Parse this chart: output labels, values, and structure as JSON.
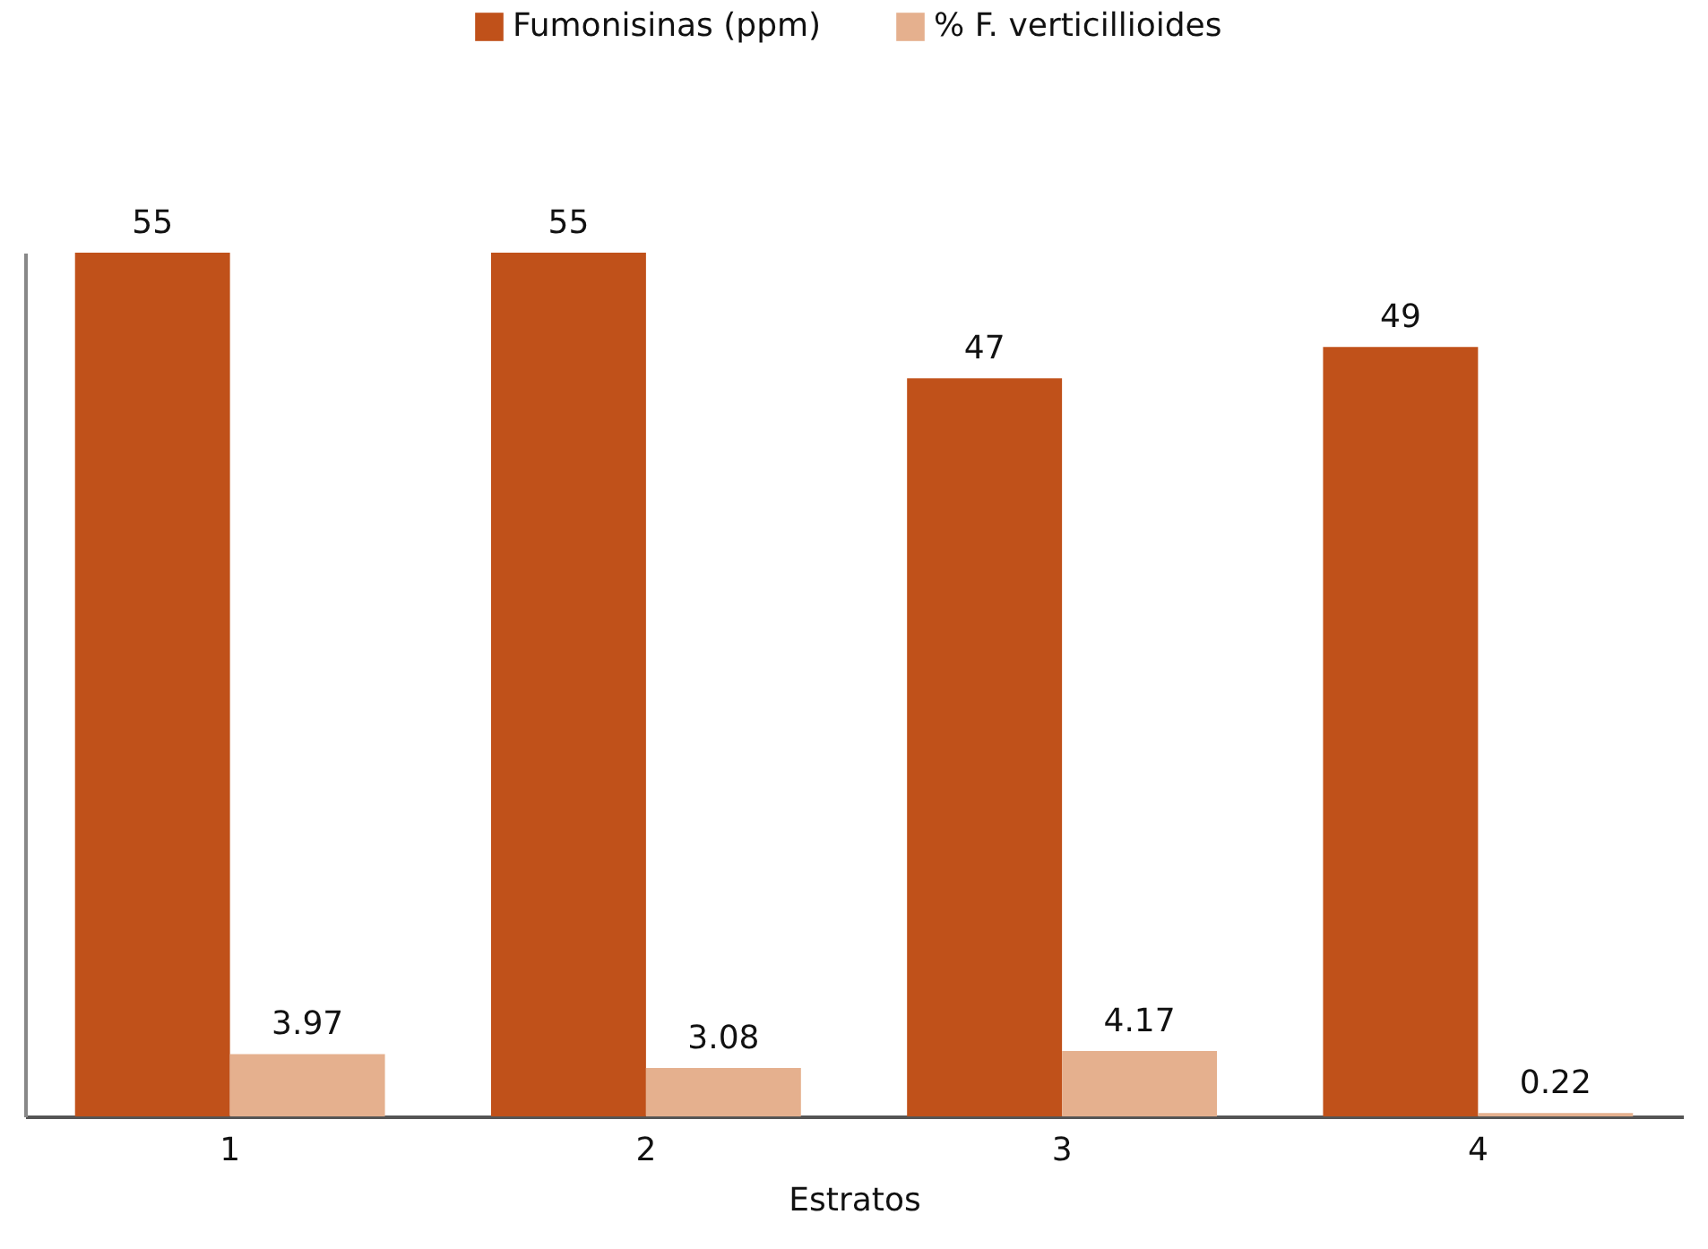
{
  "chart_data": {
    "type": "bar",
    "xlabel": "Estratos",
    "categories": [
      "1",
      "2",
      "3",
      "4"
    ],
    "series": [
      {
        "name": "Fumonisinas (ppm)",
        "color": "#c0511a",
        "values": [
          55,
          55,
          47,
          49
        ]
      },
      {
        "name": "% F. verticillioides",
        "color": "#e5b08e",
        "values": [
          3.97,
          3.08,
          4.17,
          0.22
        ]
      }
    ],
    "data_labels": true,
    "legend": "top",
    "tick_labels": "x"
  }
}
